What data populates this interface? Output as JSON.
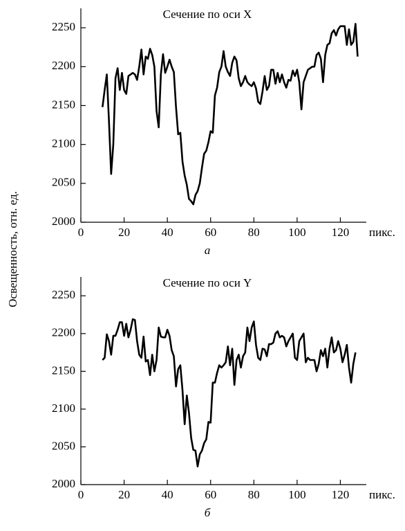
{
  "ylabel": "Освещенность, отн. ед.",
  "chart_data": [
    {
      "type": "line",
      "title": "Сечение по оси X",
      "xlabel": "пикс.",
      "panel_label": "а",
      "xlim": [
        0,
        132
      ],
      "xticks": [
        0,
        20,
        40,
        60,
        80,
        100,
        120
      ],
      "ylim": [
        2000,
        2275
      ],
      "yticks": [
        2000,
        2050,
        2100,
        2150,
        2200,
        2250
      ],
      "x": [
        10,
        11,
        12,
        13,
        14,
        15,
        16,
        17,
        18,
        19,
        20,
        21,
        22,
        23,
        24,
        25,
        26,
        27,
        28,
        29,
        30,
        31,
        32,
        33,
        34,
        35,
        36,
        37,
        38,
        39,
        40,
        41,
        42,
        43,
        44,
        45,
        46,
        47,
        48,
        49,
        50,
        51,
        52,
        53,
        54,
        55,
        56,
        57,
        58,
        59,
        60,
        61,
        62,
        63,
        64,
        65,
        66,
        67,
        68,
        69,
        70,
        71,
        72,
        73,
        74,
        75,
        76,
        77,
        78,
        79,
        80,
        81,
        82,
        83,
        84,
        85,
        86,
        87,
        88,
        89,
        90,
        91,
        92,
        93,
        94,
        95,
        96,
        97,
        98,
        99,
        100,
        101,
        102,
        103,
        104,
        105,
        106,
        107,
        108,
        109,
        110,
        111,
        112,
        113,
        114,
        115,
        116,
        117,
        118,
        119,
        120,
        121,
        122,
        123,
        124,
        125,
        126,
        127,
        128
      ],
      "series": [
        {
          "color": "#000000",
          "values": [
            2148,
            2170,
            2190,
            2130,
            2062,
            2100,
            2185,
            2198,
            2170,
            2192,
            2170,
            2165,
            2188,
            2190,
            2192,
            2190,
            2183,
            2200,
            2222,
            2190,
            2213,
            2210,
            2223,
            2215,
            2200,
            2143,
            2122,
            2190,
            2216,
            2192,
            2200,
            2209,
            2200,
            2193,
            2148,
            2113,
            2115,
            2078,
            2060,
            2048,
            2030,
            2027,
            2023,
            2035,
            2040,
            2050,
            2070,
            2088,
            2092,
            2103,
            2117,
            2115,
            2163,
            2173,
            2193,
            2200,
            2220,
            2200,
            2193,
            2188,
            2205,
            2213,
            2208,
            2185,
            2175,
            2180,
            2188,
            2180,
            2177,
            2175,
            2180,
            2172,
            2155,
            2152,
            2168,
            2188,
            2170,
            2175,
            2196,
            2196,
            2178,
            2192,
            2180,
            2190,
            2180,
            2173,
            2183,
            2182,
            2195,
            2188,
            2196,
            2180,
            2145,
            2180,
            2188,
            2196,
            2198,
            2200,
            2200,
            2215,
            2218,
            2210,
            2180,
            2215,
            2228,
            2230,
            2243,
            2247,
            2240,
            2248,
            2252,
            2252,
            2252,
            2228,
            2248,
            2228,
            2232,
            2255,
            2213
          ]
        }
      ]
    },
    {
      "type": "line",
      "title": "Сечение по оси Y",
      "xlabel": "пикс.",
      "panel_label": "б",
      "xlim": [
        0,
        132
      ],
      "xticks": [
        0,
        20,
        40,
        60,
        80,
        100,
        120
      ],
      "ylim": [
        2000,
        2275
      ],
      "yticks": [
        2000,
        2050,
        2100,
        2150,
        2200,
        2250
      ],
      "x": [
        10,
        11,
        12,
        13,
        14,
        15,
        16,
        17,
        18,
        19,
        20,
        21,
        22,
        23,
        24,
        25,
        26,
        27,
        28,
        29,
        30,
        31,
        32,
        33,
        34,
        35,
        36,
        37,
        38,
        39,
        40,
        41,
        42,
        43,
        44,
        45,
        46,
        47,
        48,
        49,
        50,
        51,
        52,
        53,
        54,
        55,
        56,
        57,
        58,
        59,
        60,
        61,
        62,
        63,
        64,
        65,
        66,
        67,
        68,
        69,
        70,
        71,
        72,
        73,
        74,
        75,
        76,
        77,
        78,
        79,
        80,
        81,
        82,
        83,
        84,
        85,
        86,
        87,
        88,
        89,
        90,
        91,
        92,
        93,
        94,
        95,
        96,
        97,
        98,
        99,
        100,
        101,
        102,
        103,
        104,
        105,
        106,
        107,
        108,
        109,
        110,
        111,
        112,
        113,
        114,
        115,
        116,
        117,
        118,
        119,
        120,
        121,
        122,
        123,
        124,
        125,
        126,
        127
      ],
      "series": [
        {
          "color": "#000000",
          "values": [
            2165,
            2168,
            2199,
            2190,
            2172,
            2197,
            2197,
            2205,
            2215,
            2215,
            2197,
            2213,
            2195,
            2205,
            2219,
            2218,
            2190,
            2172,
            2168,
            2196,
            2163,
            2165,
            2145,
            2172,
            2150,
            2165,
            2208,
            2196,
            2195,
            2195,
            2205,
            2197,
            2178,
            2170,
            2130,
            2153,
            2158,
            2125,
            2080,
            2118,
            2095,
            2062,
            2046,
            2045,
            2024,
            2040,
            2045,
            2055,
            2060,
            2083,
            2082,
            2135,
            2135,
            2148,
            2158,
            2155,
            2158,
            2162,
            2183,
            2158,
            2180,
            2132,
            2165,
            2172,
            2155,
            2170,
            2175,
            2208,
            2190,
            2208,
            2216,
            2185,
            2168,
            2165,
            2180,
            2179,
            2170,
            2186,
            2186,
            2188,
            2200,
            2203,
            2195,
            2197,
            2195,
            2183,
            2190,
            2195,
            2200,
            2168,
            2165,
            2190,
            2195,
            2200,
            2162,
            2168,
            2165,
            2165,
            2165,
            2150,
            2160,
            2178,
            2170,
            2180,
            2155,
            2180,
            2195,
            2175,
            2178,
            2190,
            2180,
            2162,
            2172,
            2185,
            2155,
            2135,
            2160,
            2175
          ]
        }
      ]
    }
  ]
}
